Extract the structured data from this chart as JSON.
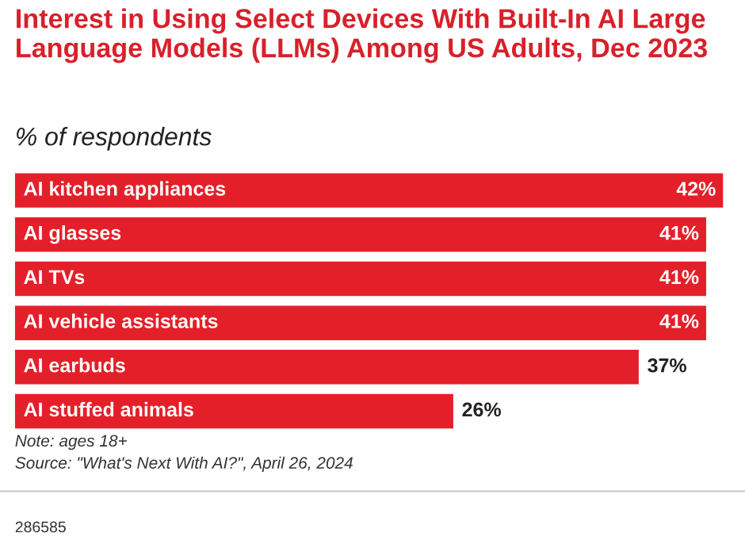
{
  "chart_data": {
    "type": "bar",
    "orientation": "horizontal",
    "title": "Interest in Using Select Devices With Built-In AI Large Language Models (LLMs) Among US Adults, Dec 2023",
    "subtitle": "% of respondents",
    "categories": [
      "AI kitchen appliances",
      "AI glasses",
      "AI TVs",
      "AI vehicle assistants",
      "AI earbuds",
      "AI stuffed animals"
    ],
    "values": [
      42,
      41,
      41,
      41,
      37,
      26
    ],
    "value_labels": [
      "42%",
      "41%",
      "41%",
      "41%",
      "37%",
      "26%"
    ],
    "color": "#e3202a",
    "data_labels": true,
    "annotations": [
      "Note: ages 18+",
      "Source: \"What's Next With AI?\", April 26, 2024",
      "286585"
    ]
  }
}
